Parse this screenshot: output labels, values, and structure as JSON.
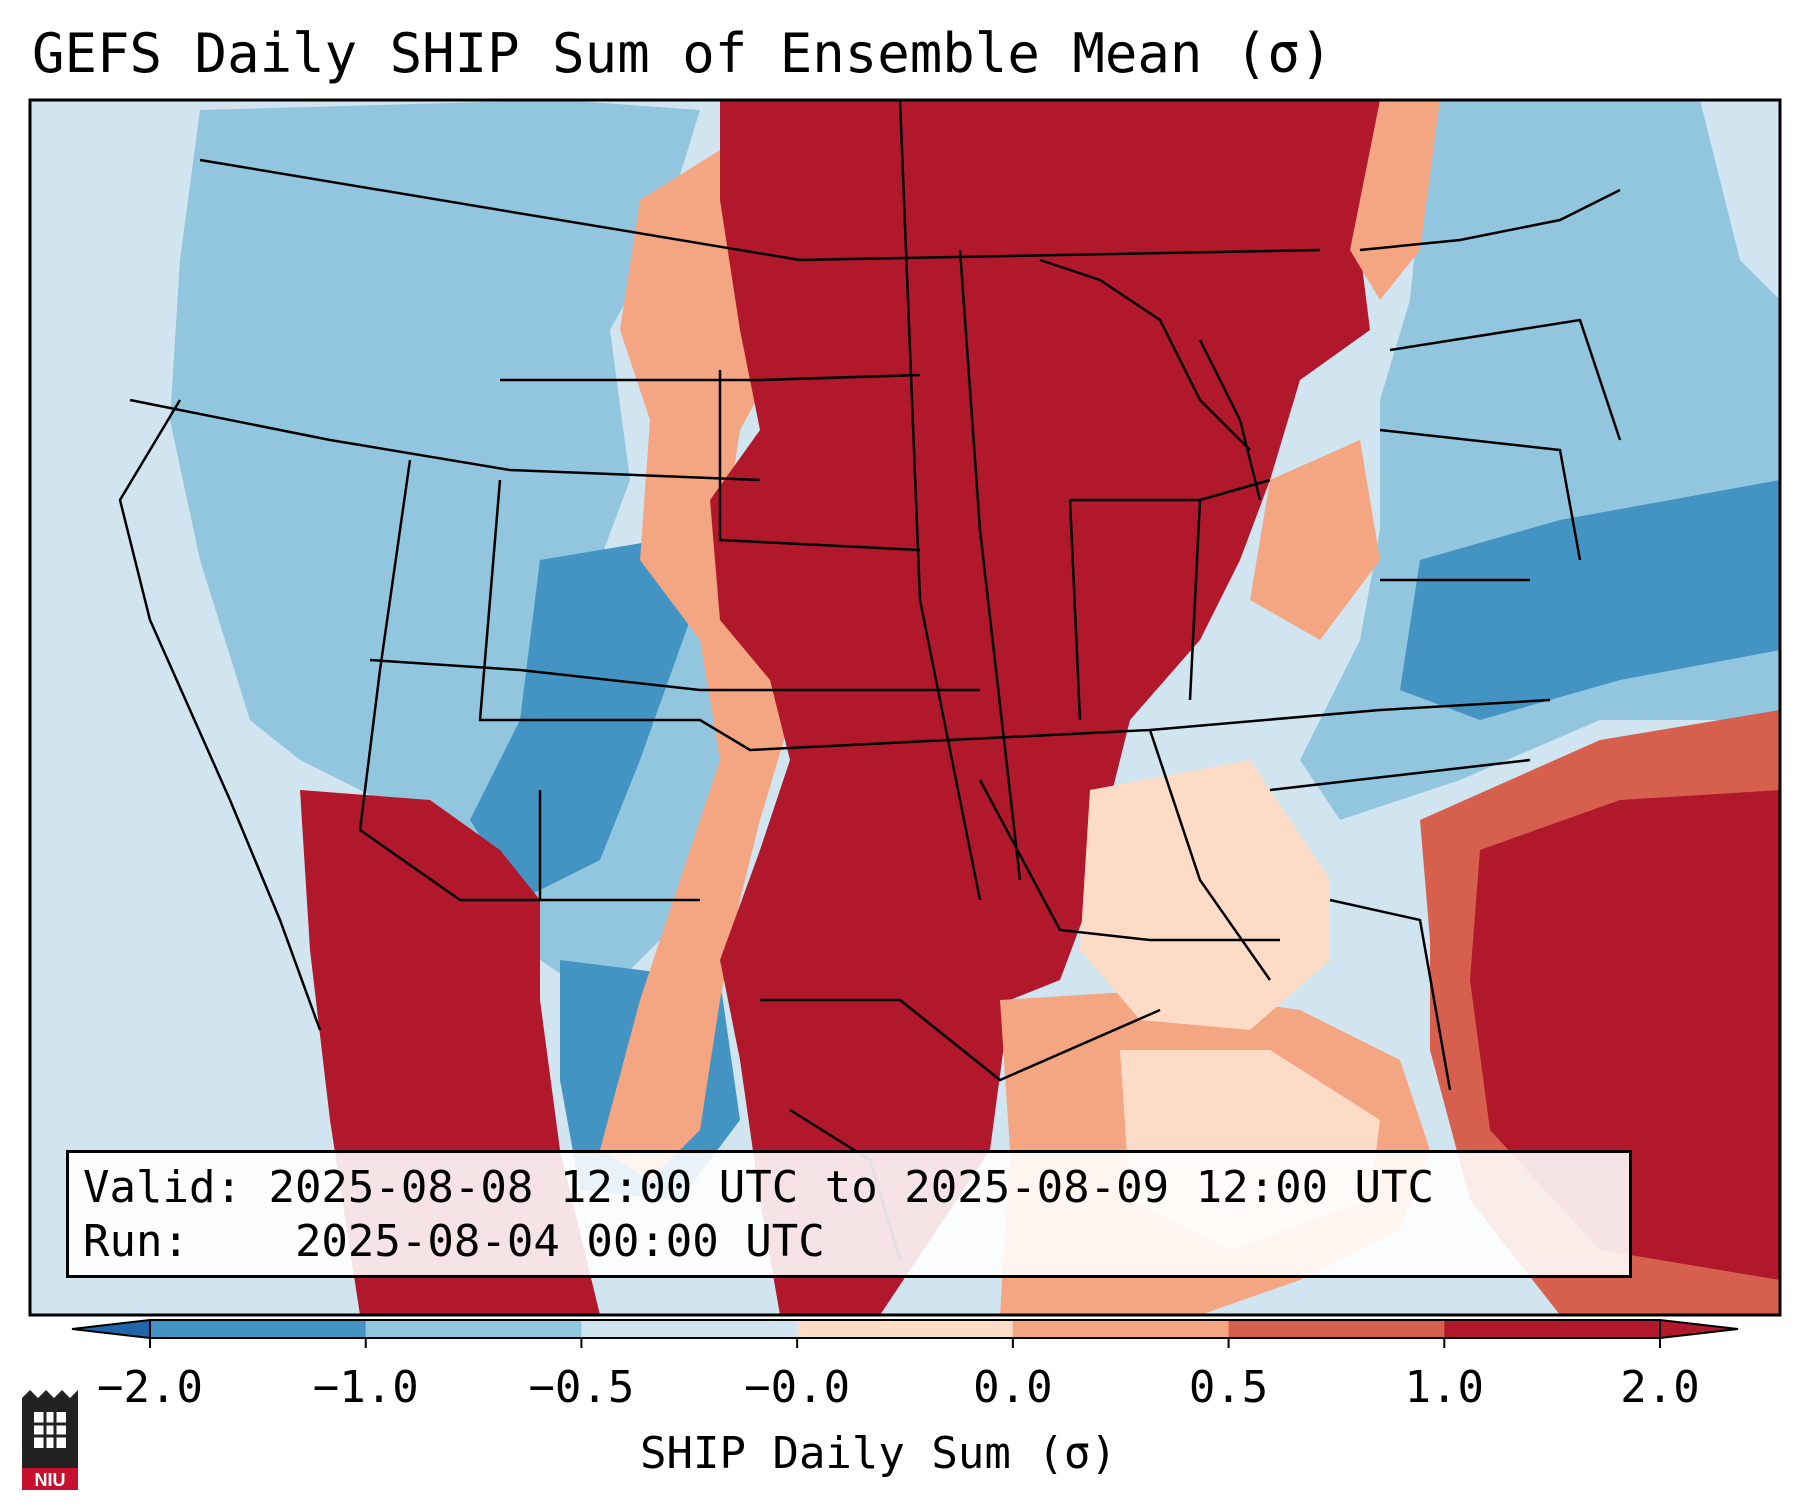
{
  "title": "GEFS Daily SHIP Sum of Ensemble Mean (σ)",
  "info": {
    "valid_label": "Valid:",
    "valid_value": "2025-08-08 12:00 UTC to 2025-08-09 12:00 UTC",
    "run_label": "Run:",
    "run_value": "2025-08-04 00:00 UTC"
  },
  "colorbar": {
    "label": "SHIP Daily Sum (σ)",
    "ticks": [
      "−2.0",
      "−1.0",
      "−0.5",
      "−0.0",
      "0.0",
      "0.5",
      "1.0",
      "2.0"
    ],
    "colors": [
      "#4393c3",
      "#92c5de",
      "#d1e5f0",
      "#fddbc7",
      "#f4a582",
      "#d6604d",
      "#b2182b"
    ],
    "extend_low_color": "#2166ac",
    "extend_high_color": "#b2182b"
  },
  "logo": {
    "text": "NIU"
  },
  "regions": {
    "northern_plains_midwest": "#b2182b",
    "mountain_west": "#92c5de",
    "southwest": "#4393c3",
    "pacific_coast": "#d1e5f0",
    "northeast": "#92c5de",
    "atlantic": "#b2182b",
    "gulf": "#f4a582",
    "southeast": "#fddbc7"
  }
}
